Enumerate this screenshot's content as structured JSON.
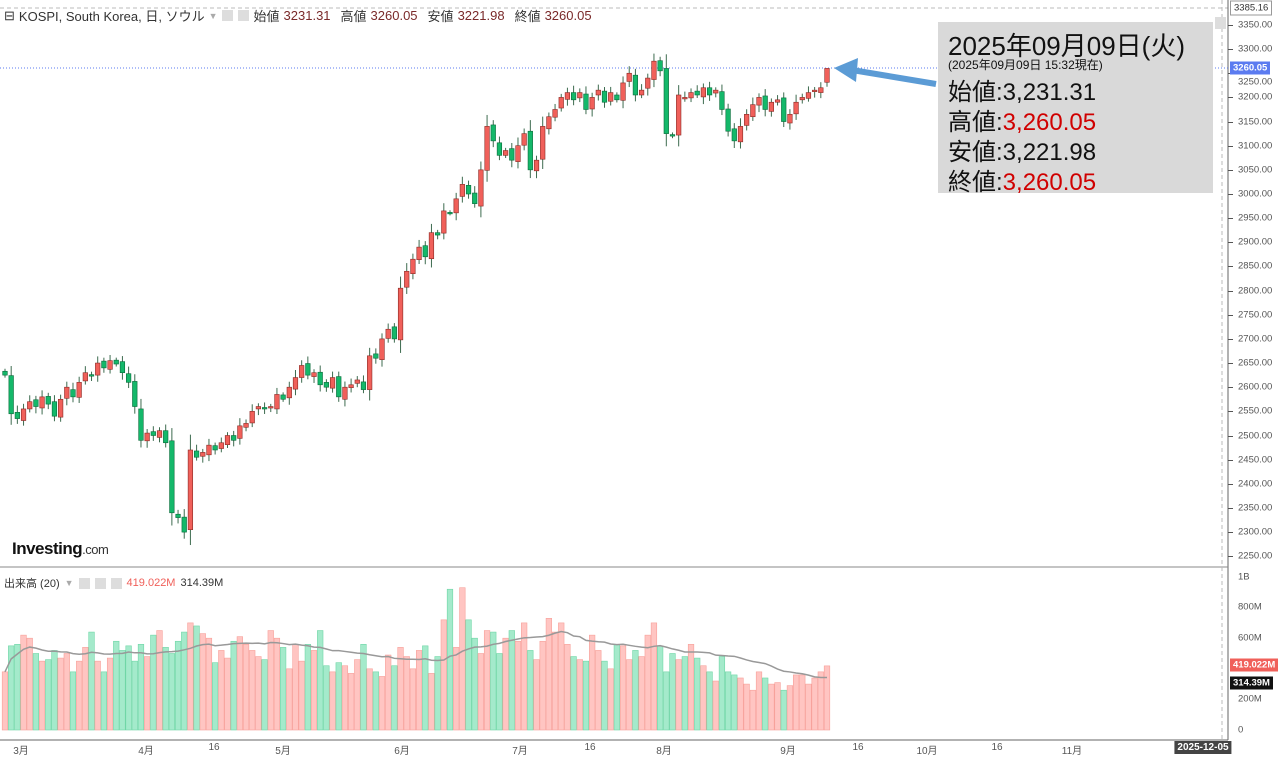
{
  "header": {
    "symbol": "KOSPI, South Korea, 日, ソウル",
    "open_label": "始値",
    "open": "3231.31",
    "high_label": "高値",
    "high": "3260.05",
    "low_label": "安値",
    "low": "3221.98",
    "close_label": "終値",
    "close": "3260.05"
  },
  "annotation": {
    "date": "2025年09月09日(火)",
    "as_of": "(2025年09月09日 15:32現在)",
    "rows": [
      {
        "label": "始値",
        "sep": ":",
        "value": "3,231.31",
        "color": "#111111"
      },
      {
        "label": "高値",
        "sep": ":",
        "value": "3,260.05",
        "color": "#d00000"
      },
      {
        "label": "安値",
        "sep": ":",
        "value": "3,221.98",
        "color": "#111111"
      },
      {
        "label": "終値",
        "sep": ":",
        "value": "3,260.05",
        "color": "#d00000"
      }
    ]
  },
  "price_axis": {
    "labels": [
      "3350.00",
      "3300.00",
      "3250.00",
      "3200.00",
      "3150.00",
      "3100.00",
      "3050.00",
      "3000.00",
      "2950.00",
      "2900.00",
      "2850.00",
      "2800.00",
      "2750.00",
      "2700.00",
      "2650.00",
      "2600.00",
      "2550.00",
      "2500.00",
      "2450.00",
      "2400.00",
      "2350.00",
      "2300.00",
      "2250.00"
    ],
    "top_value": "3385.16",
    "current_value": "3260.05"
  },
  "volume_panel": {
    "title": "出来高 (20)",
    "last_volume": "419.022M",
    "ma_value": "314.39M",
    "axis_labels": [
      "1B",
      "800M",
      "600M",
      "200M",
      "0"
    ]
  },
  "time_axis": {
    "labels": [
      "3月",
      "4月",
      "16",
      "5月",
      "6月",
      "7月",
      "16",
      "8月",
      "9月",
      "16",
      "10月",
      "16",
      "11月"
    ],
    "cursor_date": "2025-12-05"
  },
  "logo": {
    "brand": "Investing",
    "suffix": ".com"
  },
  "colors": {
    "up": "#f0605a",
    "down": "#14b86a",
    "up_vol": "#ffc5c2",
    "down_vol": "#a4eacb",
    "accent": "#5b9bd5",
    "ma": "#999999"
  },
  "chart_data": {
    "type": "candlestick",
    "title": "KOSPI, South Korea, 日",
    "ylabel": "",
    "xlabel": "",
    "ylim": [
      2230,
      3385.16
    ],
    "volume_ylim_M": [
      0,
      1000
    ],
    "volume_ma_period": 20,
    "note": "daily closes; each candle opens at the previous close; last candle OHLC given explicitly",
    "closes": [
      2625,
      2545,
      2535,
      2555,
      2570,
      2560,
      2580,
      2565,
      2540,
      2575,
      2600,
      2580,
      2610,
      2630,
      2625,
      2650,
      2640,
      2655,
      2648,
      2630,
      2610,
      2560,
      2490,
      2505,
      2500,
      2510,
      2485,
      2340,
      2330,
      2300,
      2470,
      2455,
      2465,
      2480,
      2470,
      2485,
      2500,
      2490,
      2520,
      2525,
      2550,
      2560,
      2555,
      2560,
      2585,
      2575,
      2600,
      2620,
      2645,
      2625,
      2630,
      2605,
      2600,
      2620,
      2580,
      2600,
      2605,
      2615,
      2595,
      2665,
      2660,
      2700,
      2720,
      2700,
      2805,
      2840,
      2865,
      2890,
      2870,
      2920,
      2915,
      2965,
      2960,
      2990,
      3020,
      3000,
      2980,
      3050,
      3140,
      3110,
      3080,
      3090,
      3070,
      3100,
      3125,
      3050,
      3070,
      3140,
      3160,
      3175,
      3200,
      3210,
      3195,
      3210,
      3175,
      3200,
      3215,
      3190,
      3210,
      3195,
      3230,
      3250,
      3205,
      3215,
      3240,
      3275,
      3255,
      3125,
      3120,
      3205,
      3200,
      3210,
      3205,
      3220,
      3205,
      3215,
      3175,
      3130,
      3110,
      3140,
      3165,
      3185,
      3200,
      3175,
      3190,
      3195,
      3150,
      3165,
      3190,
      3200,
      3210,
      3215,
      3220,
      3260.05
    ],
    "last_ohlc": {
      "open": 3231.31,
      "high": 3260.05,
      "low": 3221.98,
      "close": 3260.05
    },
    "volumes_M": [
      380,
      550,
      560,
      620,
      600,
      500,
      450,
      460,
      520,
      470,
      500,
      380,
      450,
      540,
      640,
      450,
      380,
      470,
      580,
      520,
      550,
      450,
      560,
      480,
      620,
      650,
      540,
      500,
      580,
      640,
      700,
      680,
      630,
      600,
      440,
      520,
      470,
      580,
      610,
      560,
      520,
      480,
      460,
      650,
      600,
      540,
      400,
      560,
      450,
      560,
      520,
      650,
      420,
      380,
      440,
      420,
      370,
      460,
      560,
      400,
      380,
      350,
      490,
      420,
      540,
      480,
      400,
      520,
      550,
      370,
      480,
      720,
      920,
      540,
      930,
      720,
      600,
      500,
      650,
      640,
      500,
      600,
      650,
      580,
      700,
      520,
      460,
      580,
      730,
      640,
      700,
      560,
      480,
      460,
      450,
      620,
      520,
      450,
      400,
      560,
      550,
      460,
      520,
      480,
      620,
      700,
      550,
      380,
      500,
      460,
      480,
      560,
      470,
      420,
      380,
      320,
      480,
      380,
      360,
      340,
      300,
      260,
      380,
      340,
      300,
      310,
      260,
      290,
      360,
      360,
      300,
      340,
      380,
      419.022
    ]
  }
}
